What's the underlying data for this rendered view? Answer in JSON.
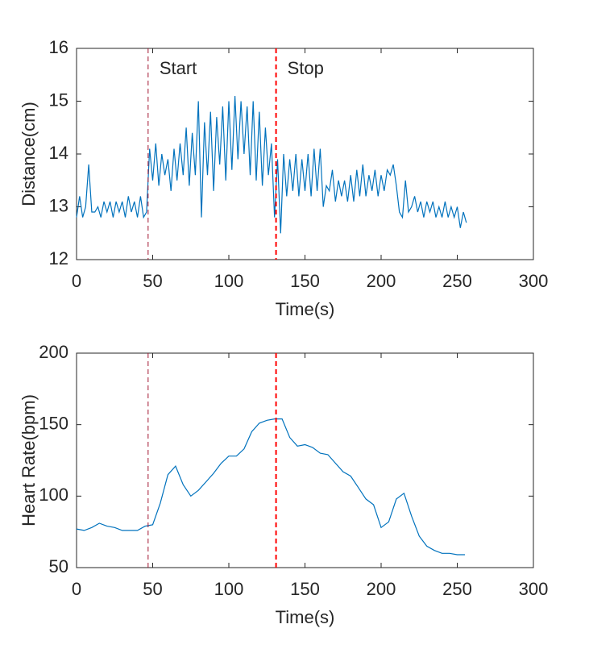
{
  "chart_data": [
    {
      "type": "line",
      "xlabel": "Time(s)",
      "ylabel": "Distance(cm)",
      "xlim": [
        0,
        300
      ],
      "xticks": [
        0,
        50,
        100,
        150,
        200,
        250,
        300
      ],
      "ylim": [
        12,
        16
      ],
      "yticks": [
        12,
        13,
        14,
        15,
        16
      ],
      "vlines": [
        {
          "x": 47,
          "color": "#a2142f",
          "width": 1
        },
        {
          "x": 131,
          "color": "#ff0000",
          "width": 2
        }
      ],
      "annotations": [
        {
          "text": "Start",
          "color": "#ff0000"
        },
        {
          "text": "Stop",
          "color": "#ff0000"
        }
      ],
      "series": [
        {
          "color": "#0072bd",
          "x": [
            0,
            2,
            4,
            6,
            8,
            10,
            12,
            14,
            16,
            18,
            20,
            22,
            24,
            26,
            28,
            30,
            32,
            34,
            36,
            38,
            40,
            42,
            44,
            46,
            48,
            50,
            52,
            54,
            56,
            58,
            60,
            62,
            64,
            66,
            68,
            70,
            72,
            74,
            76,
            78,
            80,
            82,
            84,
            86,
            88,
            90,
            92,
            94,
            96,
            98,
            100,
            102,
            104,
            106,
            108,
            110,
            112,
            114,
            116,
            118,
            120,
            122,
            124,
            126,
            128,
            130,
            132,
            134,
            136,
            138,
            140,
            142,
            144,
            146,
            148,
            150,
            152,
            154,
            156,
            158,
            160,
            162,
            164,
            166,
            168,
            170,
            172,
            174,
            176,
            178,
            180,
            182,
            184,
            186,
            188,
            190,
            192,
            194,
            196,
            198,
            200,
            202,
            204,
            206,
            208,
            210,
            212,
            214,
            216,
            218,
            220,
            222,
            224,
            226,
            228,
            230,
            232,
            234,
            236,
            238,
            240,
            242,
            244,
            246,
            248,
            250,
            252,
            254,
            256
          ],
          "values": [
            12.8,
            13.2,
            12.8,
            13.0,
            13.8,
            12.9,
            12.9,
            13.0,
            12.8,
            13.1,
            12.9,
            13.1,
            12.8,
            13.1,
            12.9,
            13.1,
            12.8,
            13.2,
            12.9,
            13.1,
            12.8,
            13.2,
            12.8,
            12.9,
            14.1,
            13.5,
            14.2,
            13.4,
            14.0,
            13.6,
            13.9,
            13.3,
            14.1,
            13.5,
            14.2,
            13.6,
            14.5,
            13.4,
            14.4,
            13.6,
            15.0,
            12.8,
            14.6,
            13.6,
            14.8,
            13.3,
            14.7,
            13.8,
            14.9,
            13.5,
            15.0,
            13.7,
            15.1,
            13.9,
            15.0,
            14.0,
            14.9,
            13.6,
            15.0,
            13.5,
            14.8,
            13.4,
            14.5,
            13.6,
            14.2,
            12.8,
            13.9,
            12.5,
            14.0,
            13.2,
            13.9,
            13.3,
            14.0,
            13.2,
            13.9,
            13.3,
            14.0,
            13.2,
            14.1,
            13.3,
            14.1,
            13.0,
            13.4,
            13.3,
            13.7,
            13.1,
            13.5,
            13.2,
            13.5,
            13.1,
            13.6,
            13.1,
            13.7,
            13.2,
            13.8,
            13.2,
            13.6,
            13.3,
            13.7,
            13.2,
            13.6,
            13.3,
            13.7,
            13.6,
            13.8,
            13.4,
            12.9,
            12.8,
            13.5,
            12.9,
            13.0,
            13.2,
            12.9,
            13.1,
            12.8,
            13.1,
            12.9,
            13.1,
            12.8,
            13.0,
            12.8,
            13.1,
            12.8,
            13.0,
            12.8,
            13.0,
            12.6,
            12.9,
            12.7
          ]
        }
      ]
    },
    {
      "type": "line",
      "xlabel": "Time(s)",
      "ylabel": "Heart Rate(bpm)",
      "xlim": [
        0,
        300
      ],
      "xticks": [
        0,
        50,
        100,
        150,
        200,
        250,
        300
      ],
      "ylim": [
        50,
        200
      ],
      "yticks": [
        50,
        100,
        150,
        200
      ],
      "vlines": [
        {
          "x": 47,
          "color": "#a2142f",
          "width": 1
        },
        {
          "x": 131,
          "color": "#ff0000",
          "width": 2
        }
      ],
      "series": [
        {
          "color": "#0072bd",
          "x": [
            0,
            5,
            10,
            15,
            20,
            25,
            30,
            35,
            40,
            45,
            50,
            55,
            60,
            65,
            70,
            75,
            80,
            85,
            90,
            95,
            100,
            105,
            110,
            115,
            120,
            125,
            130,
            135,
            140,
            145,
            150,
            155,
            160,
            165,
            170,
            175,
            180,
            185,
            190,
            195,
            200,
            205,
            210,
            215,
            220,
            225,
            230,
            235,
            240,
            245,
            250,
            255
          ],
          "values": [
            77,
            76,
            78,
            81,
            79,
            78,
            76,
            76,
            76,
            79,
            80,
            95,
            115,
            121,
            108,
            100,
            104,
            110,
            116,
            123,
            128,
            128,
            133,
            145,
            151,
            153,
            154,
            154,
            141,
            135,
            136,
            134,
            130,
            129,
            123,
            117,
            114,
            106,
            98,
            94,
            78,
            82,
            98,
            102,
            86,
            72,
            65,
            62,
            60,
            60,
            59,
            59
          ]
        }
      ]
    }
  ]
}
